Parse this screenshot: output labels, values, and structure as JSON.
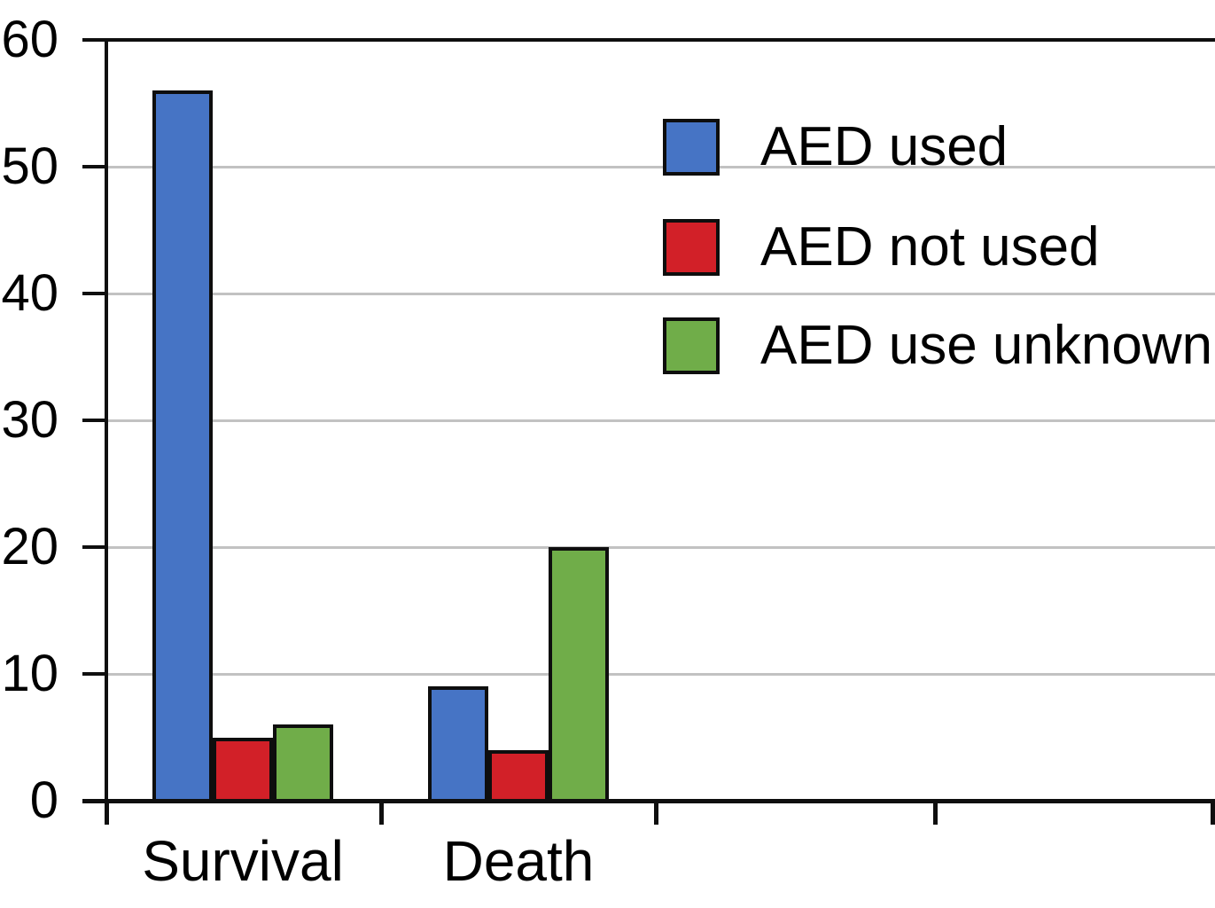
{
  "chart_data": {
    "type": "bar",
    "title": "",
    "xlabel": "",
    "ylabel": "",
    "categories": [
      "Survival",
      "Death"
    ],
    "series": [
      {
        "name": "AED used",
        "color": "#4674C5",
        "values": [
          56,
          9
        ]
      },
      {
        "name": "AED not used",
        "color": "#D22028",
        "values": [
          5,
          4
        ]
      },
      {
        "name": "AED use unknown",
        "color": "#70AD49",
        "values": [
          6,
          20
        ]
      }
    ],
    "ylim": [
      0,
      60
    ],
    "yticks": [
      0,
      10,
      20,
      30,
      40,
      50,
      60
    ],
    "grid": "horizontal gridlines at 10-50, dark line at 60",
    "legend_position": "upper-right, no frame"
  },
  "colors": {
    "axis": "#0f0f0f",
    "gridline": "#c2c2c2",
    "bar_border": "#0e0e0e",
    "text": "#000000",
    "background": "#ffffff"
  }
}
